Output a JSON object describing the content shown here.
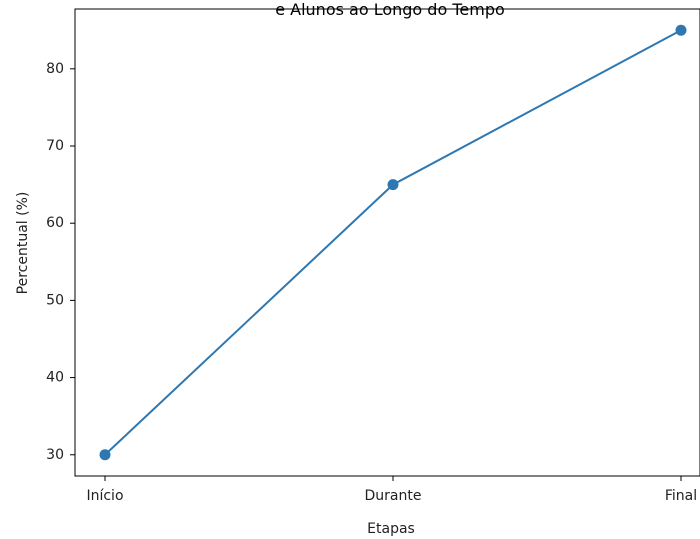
{
  "chart_data": {
    "type": "line",
    "title": "e Alunos ao Longo do Tempo",
    "xlabel": "Etapas",
    "ylabel": "Percentual (%)",
    "categories": [
      "Início",
      "Durante",
      "Final"
    ],
    "series": [
      {
        "values": [
          30,
          65,
          85
        ],
        "color": "#2e77b0",
        "marker": "circle"
      }
    ],
    "yticks": [
      30,
      40,
      50,
      60,
      70,
      80
    ],
    "ylim": [
      27.25,
      87.75
    ],
    "grid": false,
    "legend": "none"
  }
}
